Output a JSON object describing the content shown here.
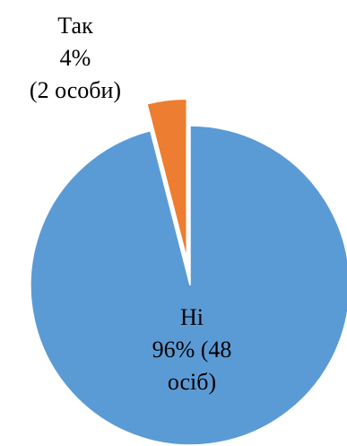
{
  "chart_data": {
    "type": "pie",
    "start_angle_deg": 0,
    "direction": "clockwise",
    "slices": [
      {
        "category": "Ні",
        "value": 96,
        "count": 48,
        "color": "#5B9BD5",
        "exploded": false,
        "label_lines": [
          "Ні",
          "96% (48",
          "осіб)"
        ]
      },
      {
        "category": "Так",
        "value": 4,
        "count": 2,
        "color": "#ED7D31",
        "exploded": true,
        "label_lines": [
          "Так",
          "4%",
          "(2 особи)"
        ]
      }
    ]
  }
}
